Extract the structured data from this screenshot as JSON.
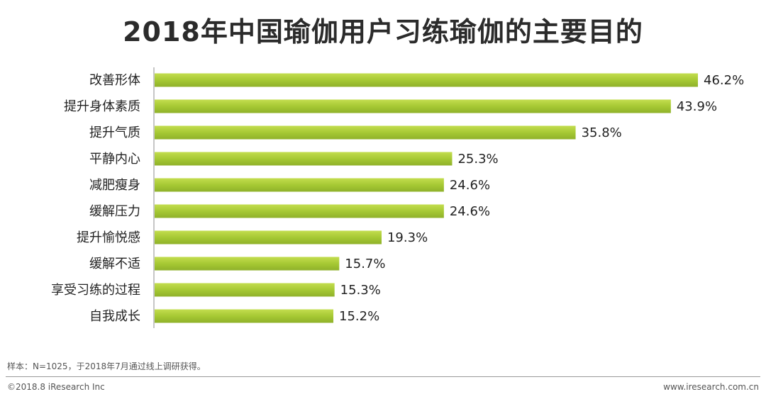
{
  "chart_data": {
    "type": "bar",
    "orientation": "horizontal",
    "title": "2018年中国瑜伽用户习练瑜伽的主要目的",
    "categories": [
      "改善形体",
      "提升身体素质",
      "提升气质",
      "平静内心",
      "减肥瘦身",
      "缓解压力",
      "提升愉悦感",
      "缓解不适",
      "享受习练的过程",
      "自我成长"
    ],
    "values": [
      46.2,
      43.9,
      35.8,
      25.3,
      24.6,
      24.6,
      19.3,
      15.7,
      15.3,
      15.2
    ],
    "value_suffix": "%",
    "xlim": [
      0,
      46.2
    ],
    "xlabel": "",
    "ylabel": "",
    "grid": false,
    "bar_color": "#a6c934"
  },
  "footer": {
    "note": "样本：N=1025，于2018年7月通过线上调研获得。",
    "copyright": "©2018.8 iResearch Inc",
    "website": "www.iresearch.com.cn"
  }
}
